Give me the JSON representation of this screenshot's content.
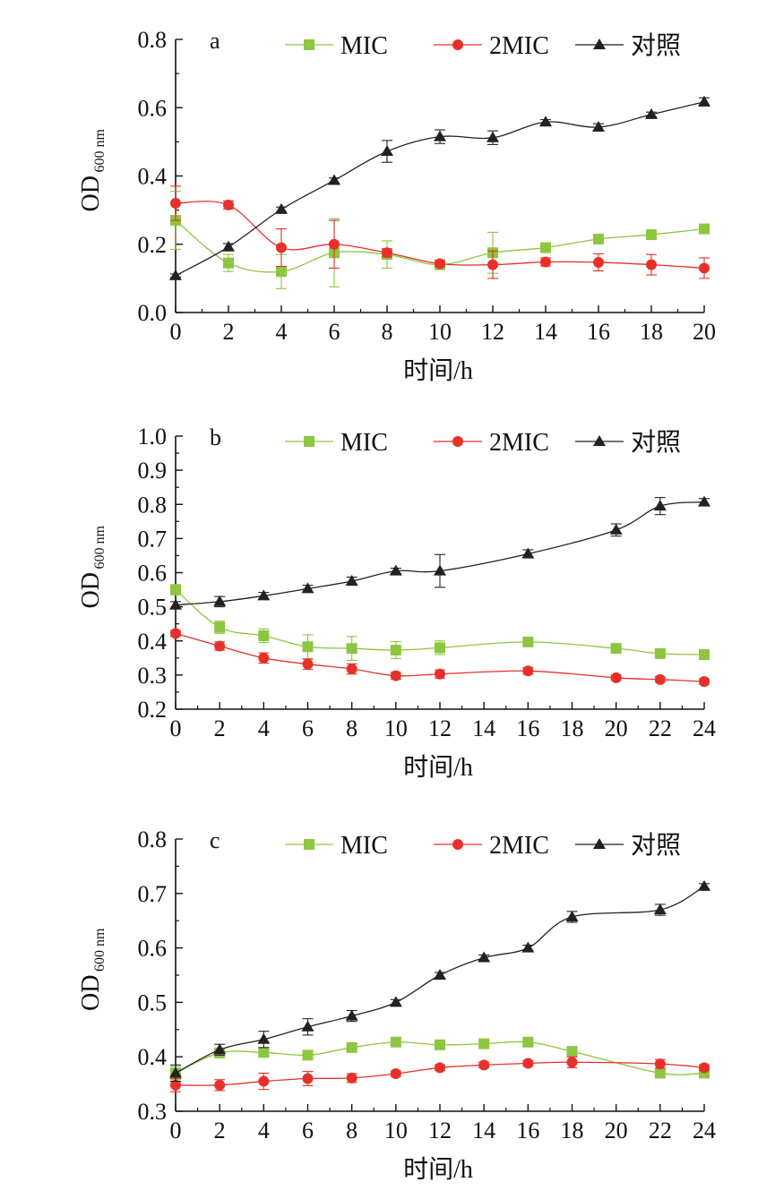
{
  "chart_data": [
    {
      "type": "line",
      "panel_label": "a",
      "xlabel": "时间/h",
      "ylabel": "OD",
      "ylabel_sub": "600 nm",
      "xlim": [
        0,
        20
      ],
      "ylim": [
        0.0,
        0.8
      ],
      "xticks": [
        0,
        2,
        4,
        6,
        8,
        10,
        12,
        14,
        16,
        18,
        20
      ],
      "yticks": [
        0.0,
        0.2,
        0.4,
        0.6,
        0.8
      ],
      "ytick_labels": [
        "0.0",
        "0.2",
        "0.4",
        "0.6",
        "0.8"
      ],
      "legend_position": "top",
      "grid": false,
      "series": [
        {
          "name": "MIC",
          "color": "#8dc63f",
          "marker": "square",
          "x": [
            0,
            2,
            4,
            6,
            8,
            10,
            12,
            14,
            16,
            18,
            20
          ],
          "y": [
            0.27,
            0.145,
            0.12,
            0.175,
            0.17,
            0.14,
            0.175,
            0.19,
            0.215,
            0.228,
            0.245
          ],
          "err": [
            0.085,
            0.025,
            0.05,
            0.1,
            0.04,
            0.01,
            0.06,
            0.01,
            0.01,
            0.008,
            0.01
          ]
        },
        {
          "name": "2MIC",
          "color": "#e8302a",
          "marker": "circle",
          "x": [
            0,
            2,
            4,
            6,
            8,
            10,
            12,
            14,
            16,
            18,
            20
          ],
          "y": [
            0.32,
            0.315,
            0.19,
            0.2,
            0.175,
            0.143,
            0.14,
            0.148,
            0.147,
            0.14,
            0.13
          ],
          "err": [
            0.05,
            0.012,
            0.055,
            0.07,
            0.012,
            0.008,
            0.04,
            0.012,
            0.025,
            0.03,
            0.03
          ]
        },
        {
          "name": "对照",
          "color": "#222222",
          "marker": "triangle",
          "x": [
            0,
            2,
            4,
            6,
            8,
            10,
            12,
            14,
            16,
            18,
            20
          ],
          "y": [
            0.108,
            0.192,
            0.302,
            0.387,
            0.472,
            0.515,
            0.512,
            0.558,
            0.543,
            0.58,
            0.617
          ],
          "err": [
            0.005,
            0.01,
            0.007,
            0.007,
            0.032,
            0.02,
            0.02,
            0.007,
            0.01,
            0.007,
            0.012
          ]
        }
      ]
    },
    {
      "type": "line",
      "panel_label": "b",
      "xlabel": "时间/h",
      "ylabel": "OD",
      "ylabel_sub": "600 nm",
      "xlim": [
        0,
        24
      ],
      "ylim": [
        0.2,
        1.0
      ],
      "xticks": [
        0,
        2,
        4,
        6,
        8,
        10,
        12,
        14,
        16,
        18,
        20,
        22,
        24
      ],
      "yticks": [
        0.2,
        0.3,
        0.4,
        0.5,
        0.6,
        0.7,
        0.8,
        0.9,
        1.0
      ],
      "ytick_labels": [
        "0.2",
        "0.3",
        "0.4",
        "0.5",
        "0.6",
        "0.7",
        "0.8",
        "0.9",
        "1.0"
      ],
      "legend_position": "top",
      "grid": false,
      "series": [
        {
          "name": "MIC",
          "color": "#8dc63f",
          "marker": "square",
          "x": [
            0,
            2,
            4,
            6,
            8,
            10,
            12,
            16,
            20,
            22,
            24
          ],
          "y": [
            0.55,
            0.44,
            0.415,
            0.383,
            0.378,
            0.373,
            0.38,
            0.397,
            0.378,
            0.363,
            0.36
          ],
          "err": [
            0.015,
            0.018,
            0.02,
            0.035,
            0.035,
            0.025,
            0.02,
            0.008,
            0.008,
            0.008,
            0.008
          ]
        },
        {
          "name": "2MIC",
          "color": "#e8302a",
          "marker": "circle",
          "x": [
            0,
            2,
            4,
            6,
            8,
            10,
            12,
            16,
            20,
            22,
            24
          ],
          "y": [
            0.422,
            0.385,
            0.35,
            0.332,
            0.318,
            0.298,
            0.303,
            0.312,
            0.292,
            0.287,
            0.281
          ],
          "err": [
            0.008,
            0.012,
            0.015,
            0.015,
            0.015,
            0.01,
            0.012,
            0.01,
            0.008,
            0.008,
            0.008
          ]
        },
        {
          "name": "对照",
          "color": "#222222",
          "marker": "triangle",
          "x": [
            0,
            2,
            4,
            6,
            8,
            10,
            12,
            16,
            20,
            22,
            24
          ],
          "y": [
            0.505,
            0.515,
            0.532,
            0.553,
            0.575,
            0.605,
            0.605,
            0.655,
            0.725,
            0.795,
            0.807
          ],
          "err": [
            0.01,
            0.015,
            0.01,
            0.01,
            0.012,
            0.008,
            0.048,
            0.012,
            0.018,
            0.025,
            0.01
          ]
        }
      ]
    },
    {
      "type": "line",
      "panel_label": "c",
      "xlabel": "时间/h",
      "ylabel": "OD",
      "ylabel_sub": "600 nm",
      "xlim": [
        0,
        24
      ],
      "ylim": [
        0.3,
        0.8
      ],
      "xticks": [
        0,
        2,
        4,
        6,
        8,
        10,
        12,
        14,
        16,
        18,
        20,
        22,
        24
      ],
      "yticks": [
        0.3,
        0.4,
        0.5,
        0.6,
        0.7,
        0.8
      ],
      "ytick_labels": [
        "0.3",
        "0.4",
        "0.5",
        "0.6",
        "0.7",
        "0.8"
      ],
      "legend_position": "top",
      "grid": false,
      "series": [
        {
          "name": "MIC",
          "color": "#8dc63f",
          "marker": "square",
          "x": [
            0,
            2,
            4,
            6,
            8,
            10,
            12,
            14,
            16,
            18,
            22,
            24
          ],
          "y": [
            0.37,
            0.407,
            0.408,
            0.403,
            0.417,
            0.427,
            0.422,
            0.424,
            0.427,
            0.41,
            0.37,
            0.37
          ],
          "err": [
            0.012,
            0.008,
            0.008,
            0.008,
            0.008,
            0.008,
            0.008,
            0.005,
            0.005,
            0.008,
            0.005,
            0.005
          ]
        },
        {
          "name": "2MIC",
          "color": "#e8302a",
          "marker": "circle",
          "x": [
            0,
            2,
            4,
            6,
            8,
            10,
            12,
            14,
            16,
            18,
            22,
            24
          ],
          "y": [
            0.348,
            0.348,
            0.355,
            0.36,
            0.361,
            0.369,
            0.38,
            0.385,
            0.388,
            0.39,
            0.387,
            0.38
          ],
          "err": [
            0.012,
            0.01,
            0.015,
            0.013,
            0.008,
            0.005,
            0.005,
            0.005,
            0.005,
            0.01,
            0.008,
            0.005
          ]
        },
        {
          "name": "对照",
          "color": "#222222",
          "marker": "triangle",
          "x": [
            0,
            2,
            4,
            6,
            8,
            10,
            12,
            14,
            16,
            18,
            22,
            24
          ],
          "y": [
            0.37,
            0.413,
            0.432,
            0.455,
            0.475,
            0.5,
            0.55,
            0.582,
            0.6,
            0.657,
            0.67,
            0.713
          ],
          "err": [
            0.015,
            0.01,
            0.015,
            0.015,
            0.01,
            0.005,
            0.005,
            0.005,
            0.005,
            0.01,
            0.01,
            0.005
          ]
        }
      ]
    }
  ]
}
